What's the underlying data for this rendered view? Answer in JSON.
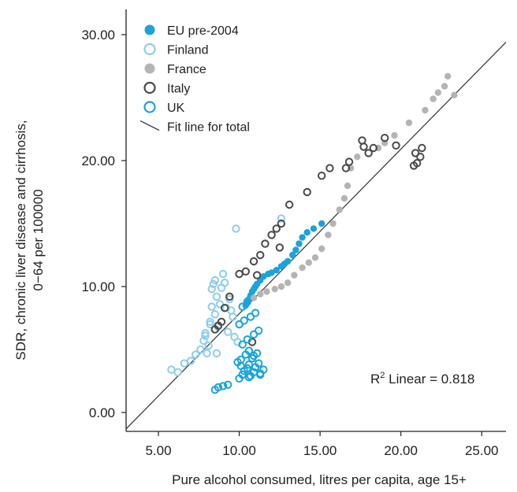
{
  "chart_data": {
    "type": "scatter",
    "title": "",
    "xlabel": "Pure alcohol consumed, litres per capita, age 15+",
    "ylabel_lines": [
      "SDR, chronic liver disease and cirrhosis,",
      "0−64 per 100000"
    ],
    "xlim": [
      3.0,
      26.5
    ],
    "ylim": [
      -1.5,
      32.0
    ],
    "x_ticks": [
      5,
      10,
      15,
      20,
      25
    ],
    "x_tick_labels": [
      "5.00",
      "10.00",
      "15.00",
      "20.00",
      "25.00"
    ],
    "y_ticks": [
      0,
      10,
      20,
      30
    ],
    "y_tick_labels": [
      "0.00",
      "10.00",
      "20.00",
      "30.00"
    ],
    "grid": false,
    "legend_position": "top-left",
    "annotation": {
      "prefix": "R",
      "sup": "2",
      "suffix": " Linear = 0.818"
    },
    "fit_line": {
      "name": "Fit line for total",
      "x": [
        3.0,
        26.5
      ],
      "y": [
        -1.3,
        29.4
      ],
      "color": "#333333"
    },
    "series": [
      {
        "name": "EU pre-2004",
        "marker": "filled",
        "color": "#1aa3dc",
        "x": [
          15.1,
          14.6,
          14.2,
          13.9,
          13.7,
          13.5,
          13.3,
          13.0,
          12.8,
          12.6,
          12.3,
          12.0,
          11.8,
          11.5,
          11.3,
          11.1,
          11.0,
          10.9,
          10.8,
          10.7,
          10.6,
          10.5,
          10.4
        ],
        "y": [
          15.0,
          14.6,
          14.3,
          13.9,
          13.4,
          12.9,
          12.5,
          12.0,
          11.8,
          11.6,
          11.3,
          11.1,
          11.0,
          10.8,
          10.5,
          10.2,
          10.0,
          9.8,
          9.6,
          9.3,
          9.0,
          8.7,
          8.5
        ]
      },
      {
        "name": "Finland",
        "marker": "open",
        "color": "#8dcdee",
        "x": [
          5.8,
          6.2,
          6.6,
          7.0,
          7.3,
          7.6,
          7.8,
          7.9,
          8.0,
          8.1,
          8.2,
          8.3,
          8.3,
          8.4,
          8.5,
          8.5,
          8.6,
          8.7,
          8.8,
          8.9,
          9.0,
          9.1,
          9.2,
          9.3,
          9.4,
          9.5,
          9.6,
          9.7,
          9.8,
          10.0,
          12.6,
          9.9,
          7.9,
          8.2,
          8.6
        ],
        "y": [
          3.4,
          3.2,
          3.9,
          4.1,
          4.6,
          5.0,
          5.7,
          6.3,
          4.7,
          5.3,
          7.2,
          8.4,
          9.8,
          10.2,
          7.8,
          10.5,
          9.2,
          6.8,
          8.6,
          9.9,
          11.0,
          10.3,
          8.3,
          6.4,
          9.0,
          8.1,
          7.6,
          6.0,
          14.6,
          7.0,
          15.4,
          5.6,
          6.1,
          7.0,
          4.7
        ]
      },
      {
        "name": "France",
        "marker": "filled",
        "color": "#b4b4b4",
        "x": [
          22.9,
          23.3,
          22.7,
          22.3,
          22.0,
          21.5,
          20.5,
          19.6,
          19.0,
          18.6,
          17.3,
          16.9,
          16.7,
          16.5,
          16.2,
          15.8,
          15.5,
          15.1,
          14.7,
          14.3,
          13.9,
          13.4,
          13.0,
          12.6,
          12.2,
          11.7,
          11.3,
          10.9
        ],
        "y": [
          26.7,
          25.2,
          25.9,
          25.4,
          24.9,
          24.0,
          23.0,
          22.0,
          21.4,
          21.0,
          20.3,
          19.4,
          18.0,
          17.0,
          16.1,
          15.0,
          14.1,
          13.0,
          12.3,
          11.9,
          11.5,
          10.9,
          10.3,
          10.0,
          9.8,
          9.6,
          9.4,
          9.1
        ]
      },
      {
        "name": "Italy",
        "marker": "open",
        "color": "#4a4a4a",
        "x": [
          21.3,
          21.2,
          21.0,
          20.9,
          20.8,
          19.7,
          19.0,
          18.3,
          18.0,
          17.7,
          17.6,
          16.8,
          16.6,
          15.6,
          15.1,
          14.2,
          13.1,
          12.6,
          12.3,
          12.0,
          11.6,
          11.3,
          10.9,
          10.4,
          10.0,
          9.4,
          9.1,
          8.9,
          8.7,
          8.5,
          10.8,
          12.5,
          11.1
        ],
        "y": [
          21.0,
          20.3,
          19.8,
          20.6,
          19.6,
          21.2,
          21.8,
          21.0,
          20.6,
          21.1,
          21.6,
          19.9,
          19.4,
          19.4,
          18.8,
          17.5,
          16.5,
          15.0,
          14.6,
          14.1,
          13.4,
          12.5,
          12.0,
          11.2,
          11.0,
          9.2,
          8.3,
          7.2,
          6.9,
          6.6,
          5.6,
          13.1,
          10.9
        ]
      },
      {
        "name": "UK",
        "marker": "open",
        "color": "#1aa3dc",
        "x": [
          8.5,
          8.7,
          9.0,
          9.3,
          10.0,
          10.2,
          10.3,
          10.5,
          10.6,
          10.7,
          10.9,
          11.0,
          11.2,
          11.5,
          10.1,
          10.4,
          10.6,
          10.8,
          11.1,
          11.3,
          10.2,
          10.5,
          10.9,
          11.2,
          10.0,
          10.3,
          10.7,
          11.0,
          10.2,
          10.5,
          9.9,
          10.1,
          10.6,
          10.9,
          11.3
        ],
        "y": [
          1.8,
          2.0,
          2.1,
          2.2,
          2.7,
          3.0,
          3.3,
          3.5,
          3.8,
          2.9,
          3.2,
          3.6,
          3.9,
          3.4,
          4.2,
          4.6,
          4.9,
          4.3,
          4.7,
          3.1,
          5.4,
          5.8,
          6.2,
          6.5,
          7.0,
          7.3,
          7.6,
          7.9,
          8.4,
          8.8,
          4.0,
          3.7,
          2.8,
          4.5,
          3.0
        ]
      }
    ]
  }
}
